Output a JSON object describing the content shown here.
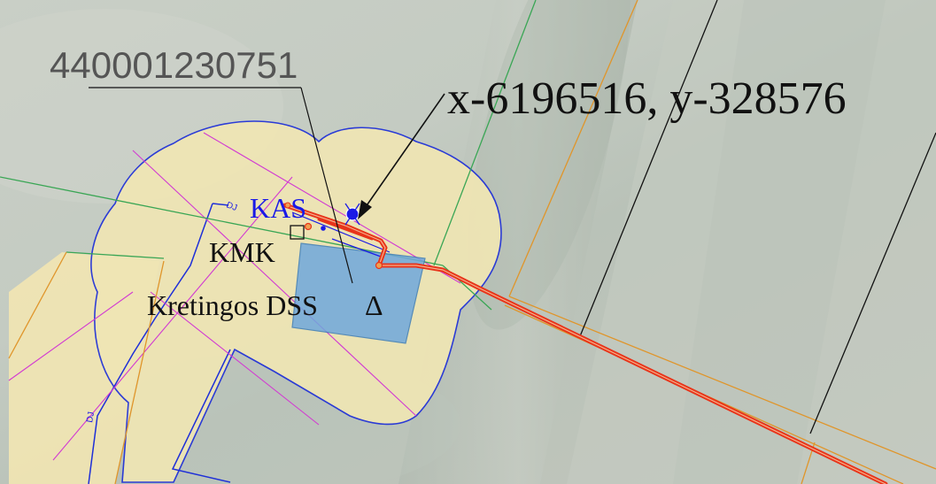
{
  "map": {
    "parcel_number": "440001230751",
    "coordinates": "x-6196516, y-328576",
    "labels": {
      "kas": "KAS",
      "kmk": "KMK",
      "station": "Kretingos DSS",
      "station_symbol": "Δ",
      "dj_upper": "DJ",
      "dj_lower": "DJ"
    },
    "colors": {
      "buffer_zone_fill": "#f0e6b4",
      "buffer_zone_stroke": "#1e2fd8",
      "substation_fill": "#6fa8dc",
      "pipeline": "#e8341a",
      "parcel_boundary": "#e0952a",
      "road_green": "#3aa655",
      "hatch_magenta": "#d23ad2",
      "black_lines": "#111111",
      "blue_labels": "#1a1ae6"
    },
    "icons": [
      "valve-symbol-icon",
      "arrow-pointer-icon",
      "square-marker-icon",
      "triangle-marker-icon"
    ]
  }
}
